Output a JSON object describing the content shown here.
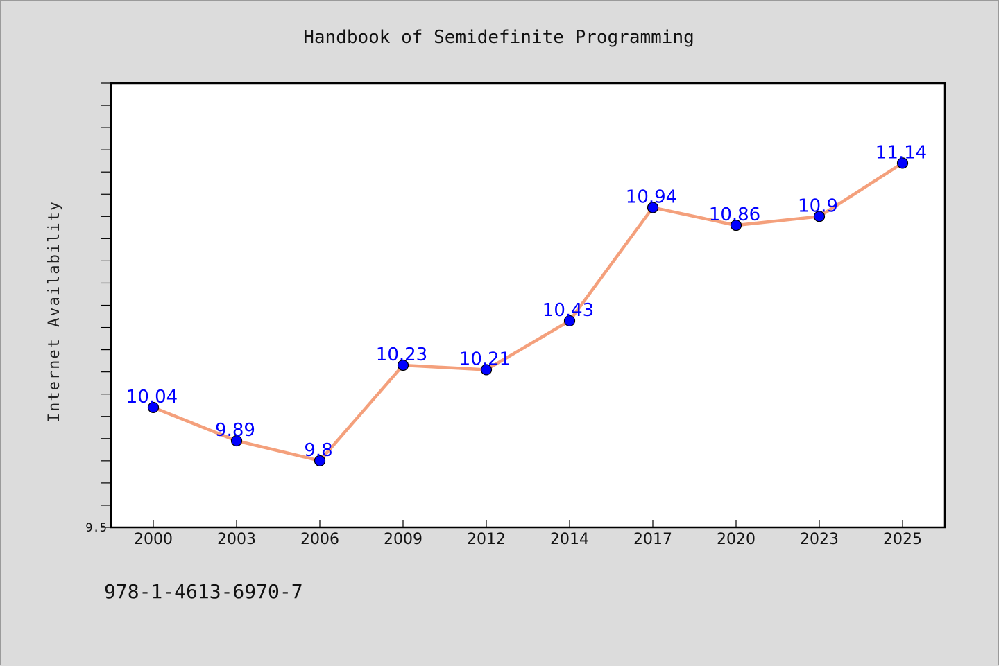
{
  "chart_data": {
    "type": "line",
    "title": "Handbook of Semidefinite Programming",
    "xlabel": "",
    "ylabel": "Internet Availability",
    "categories": [
      "2000",
      "2003",
      "2006",
      "2009",
      "2012",
      "2014",
      "2017",
      "2020",
      "2023",
      "2025"
    ],
    "series": [
      {
        "values": [
          10.04,
          9.89,
          9.8,
          10.23,
          10.21,
          10.43,
          10.94,
          10.86,
          10.9,
          11.14
        ]
      }
    ],
    "data_labels": [
      "10.04",
      "9.89",
      "9.8",
      "10.23",
      "10.21",
      "10.43",
      "10.94",
      "10.86",
      "10.9",
      "11.14"
    ],
    "ylim": [
      9.5,
      11.5
    ],
    "y_tick_labels": [
      "9.5"
    ],
    "grid": false,
    "legend": "none",
    "colors": {
      "line": "#f4a07c",
      "marker": "#0000ff",
      "data_label": "#0000ff",
      "plot_background": "#ffffff",
      "figure_background": "#dcdcdc"
    }
  },
  "footer": {
    "isbn": "978-1-4613-6970-7"
  }
}
